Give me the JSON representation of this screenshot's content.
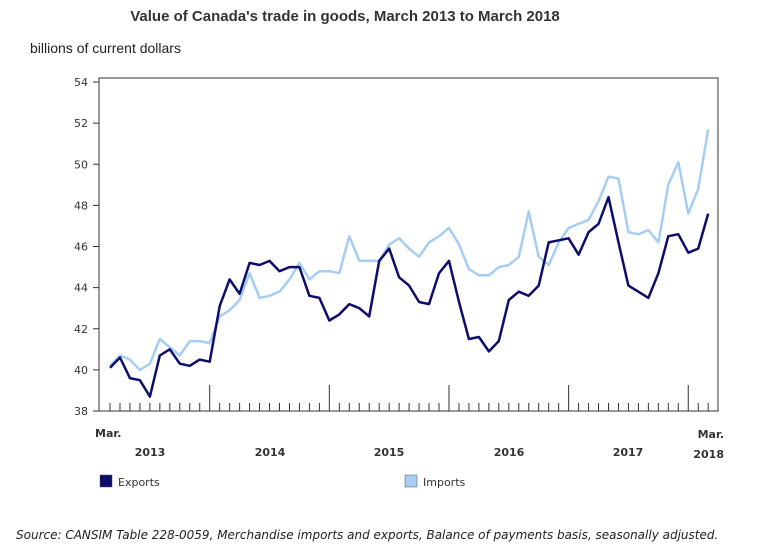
{
  "chart_data": {
    "type": "line",
    "title": "Value of Canada's trade in goods, March 2013 to March 2018",
    "ylabel": "billions of current dollars",
    "xlabel": "",
    "ylim": [
      38,
      54
    ],
    "yticks": [
      "38",
      "40",
      "42",
      "44",
      "46",
      "48",
      "50",
      "52",
      "54"
    ],
    "x_start": "Mar. 2013",
    "x_end": "Mar. 2018",
    "x_labels": {
      "start_month": "Mar.",
      "end_month": "Mar.",
      "years": [
        "2013",
        "2014",
        "2015",
        "2016",
        "2017",
        "2018"
      ]
    },
    "legend_position": "bottom",
    "series": [
      {
        "name": "Exports",
        "color": "#0d0d6b",
        "values": [
          40.1,
          40.6,
          39.6,
          39.5,
          38.7,
          40.7,
          41.0,
          40.3,
          40.2,
          40.5,
          40.4,
          43.1,
          44.4,
          43.7,
          45.2,
          45.1,
          45.3,
          44.8,
          45.0,
          45.0,
          43.6,
          43.5,
          42.4,
          42.7,
          43.2,
          43.0,
          42.6,
          45.3,
          45.9,
          44.5,
          44.1,
          43.3,
          43.2,
          44.7,
          45.3,
          43.3,
          41.5,
          41.6,
          40.9,
          41.4,
          43.4,
          43.8,
          43.6,
          44.1,
          46.2,
          46.3,
          46.4,
          45.6,
          46.7,
          47.1,
          48.4,
          46.2,
          44.1,
          43.8,
          43.5,
          44.7,
          46.5,
          46.6,
          45.7,
          45.9,
          47.6
        ]
      },
      {
        "name": "Imports",
        "color": "#a6cdf4",
        "values": [
          40.2,
          40.7,
          40.5,
          40.0,
          40.3,
          41.5,
          41.1,
          40.7,
          41.4,
          41.4,
          41.3,
          42.6,
          42.9,
          43.4,
          44.7,
          43.5,
          43.6,
          43.8,
          44.4,
          45.2,
          44.4,
          44.8,
          44.8,
          44.7,
          46.5,
          45.3,
          45.3,
          45.3,
          46.1,
          46.4,
          45.9,
          45.5,
          46.2,
          46.5,
          46.9,
          46.1,
          44.9,
          44.6,
          44.6,
          45.0,
          45.1,
          45.5,
          47.7,
          45.5,
          45.1,
          46.2,
          46.9,
          47.1,
          47.3,
          48.2,
          49.4,
          49.3,
          46.7,
          46.6,
          46.8,
          46.2,
          49.0,
          50.1,
          47.6,
          48.8,
          51.7
        ]
      }
    ]
  },
  "source": "Source: CANSIM Table 228-0059, Merchandise imports and exports, Balance of payments basis, seasonally adjusted."
}
